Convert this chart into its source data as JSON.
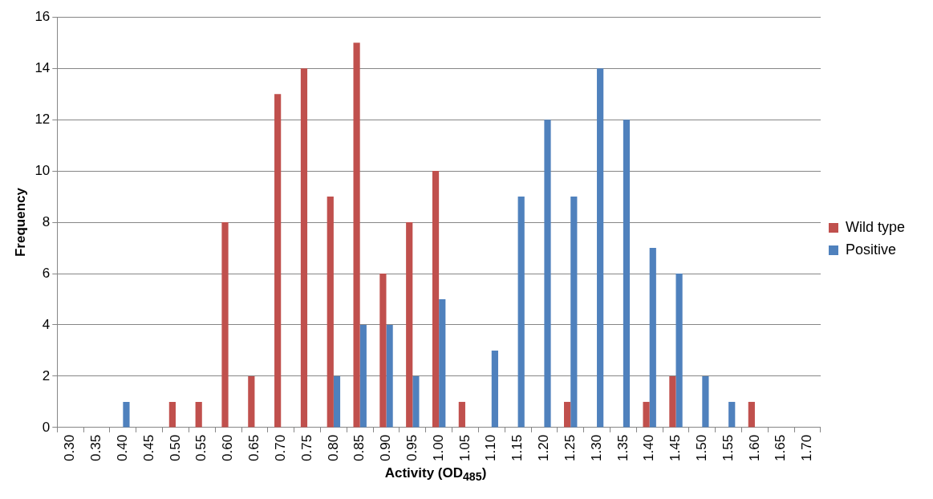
{
  "chart_data": {
    "type": "bar",
    "xlabel": "Activity (OD$_{485}$)",
    "ylabel": "Frequency",
    "categories": [
      "0.30",
      "0.35",
      "0.40",
      "0.45",
      "0.50",
      "0.55",
      "0.60",
      "0.65",
      "0.70",
      "0.75",
      "0.80",
      "0.85",
      "0.90",
      "0.95",
      "1.00",
      "1.05",
      "1.10",
      "1.15",
      "1.20",
      "1.25",
      "1.30",
      "1.35",
      "1.40",
      "1.45",
      "1.50",
      "1.55",
      "1.60",
      "1.65",
      "1.70"
    ],
    "series": [
      {
        "name": "Wild type",
        "color": "#c0504d",
        "values": [
          0,
          0,
          0,
          0,
          1,
          1,
          8,
          2,
          13,
          14,
          9,
          15,
          6,
          8,
          10,
          1,
          0,
          0,
          0,
          1,
          0,
          0,
          1,
          2,
          0,
          0,
          1,
          0,
          0
        ]
      },
      {
        "name": "Positive",
        "color": "#4f81bd",
        "values": [
          0,
          0,
          1,
          0,
          0,
          0,
          0,
          0,
          0,
          0,
          2,
          4,
          4,
          2,
          5,
          0,
          3,
          9,
          12,
          9,
          14,
          12,
          7,
          6,
          2,
          1,
          0,
          0,
          0
        ]
      }
    ],
    "ylim": [
      0,
      16
    ],
    "yticks": [
      0,
      2,
      4,
      6,
      8,
      10,
      12,
      14,
      16
    ],
    "grid": "y",
    "legend": "right"
  }
}
